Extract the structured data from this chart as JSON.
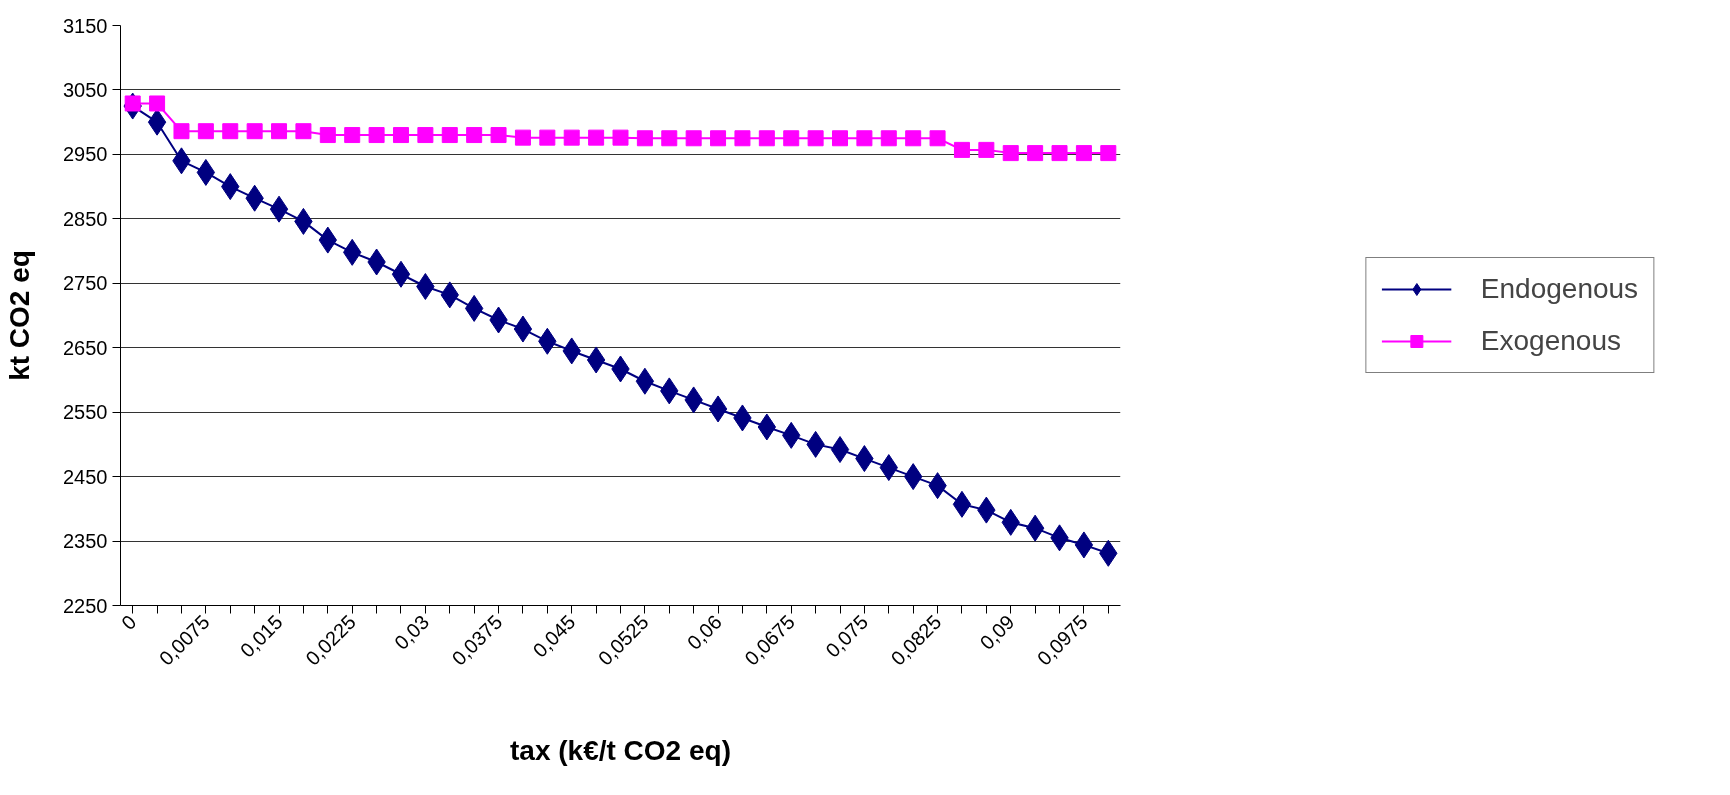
{
  "chart_data": {
    "type": "line",
    "xlabel": "tax (k€/t CO2 eq)",
    "ylabel": "kt CO2 eq",
    "categories": [
      "0",
      null,
      null,
      "0,0075",
      null,
      null,
      "0,015",
      null,
      null,
      "0,0225",
      null,
      null,
      "0,03",
      null,
      null,
      "0,0375",
      null,
      null,
      "0,045",
      null,
      null,
      "0,0525",
      null,
      null,
      "0,06",
      null,
      null,
      "0,0675",
      null,
      null,
      "0,075",
      null,
      null,
      "0,0825",
      null,
      null,
      "0,09",
      null,
      null,
      "0,0975",
      null
    ],
    "series": [
      {
        "name": "Endogenous",
        "color": "#000080",
        "marker": "diamond",
        "values": [
          3025,
          3000,
          2940,
          2922,
          2900,
          2882,
          2865,
          2846,
          2817,
          2798,
          2783,
          2764,
          2745,
          2732,
          2711,
          2693,
          2679,
          2660,
          2645,
          2631,
          2617,
          2598,
          2583,
          2569,
          2555,
          2541,
          2527,
          2514,
          2500,
          2492,
          2478,
          2464,
          2450,
          2436,
          2407,
          2398,
          2379,
          2370,
          2355,
          2344,
          2331
        ]
      },
      {
        "name": "Exogenous",
        "color": "#ff00ff",
        "marker": "square",
        "values": [
          3029,
          3029,
          2986,
          2986,
          2986,
          2986,
          2986,
          2986,
          2980,
          2980,
          2980,
          2980,
          2980,
          2980,
          2980,
          2980,
          2976,
          2976,
          2976,
          2976,
          2976,
          2975,
          2975,
          2975,
          2975,
          2975,
          2975,
          2975,
          2975,
          2975,
          2975,
          2975,
          2975,
          2975,
          2957,
          2957,
          2952,
          2952,
          2952,
          2952,
          2952
        ]
      }
    ],
    "ylim": [
      2250,
      3150
    ],
    "yticks": [
      2250,
      2350,
      2450,
      2550,
      2650,
      2750,
      2850,
      2950,
      3050,
      3150
    ],
    "grid": "y",
    "legend": "right"
  }
}
